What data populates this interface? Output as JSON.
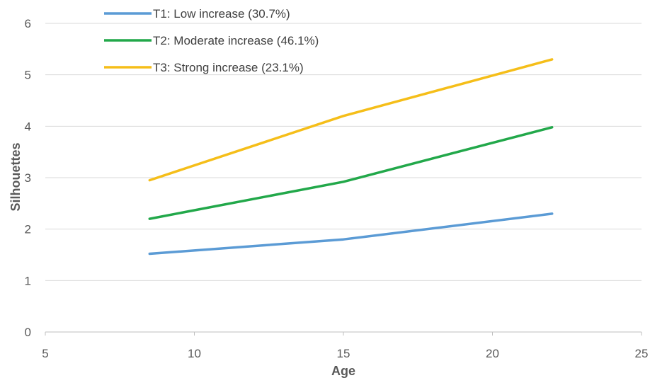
{
  "chart_data": {
    "type": "line",
    "xlabel": "Age",
    "ylabel": "Silhouettes",
    "xlim": [
      5,
      25
    ],
    "ylim": [
      0,
      6
    ],
    "x_ticks": [
      "5",
      "10",
      "15",
      "20",
      "25"
    ],
    "y_ticks": [
      "0",
      "1",
      "2",
      "3",
      "4",
      "5",
      "6"
    ],
    "grid": "horizontal",
    "legend_position": "top-left",
    "series": [
      {
        "name": "T1: Low increase (30.7%)",
        "color": "#5B9BD5",
        "x": [
          8.5,
          15,
          22
        ],
        "y": [
          1.52,
          1.8,
          2.3
        ]
      },
      {
        "name": "T2: Moderate increase (46.1%)",
        "color": "#22A84A",
        "x": [
          8.5,
          15,
          22
        ],
        "y": [
          2.2,
          2.92,
          3.98
        ]
      },
      {
        "name": "T3: Strong increase (23.1%)",
        "color": "#F5BE19",
        "x": [
          8.5,
          15,
          22
        ],
        "y": [
          2.95,
          4.2,
          5.3
        ]
      }
    ]
  }
}
